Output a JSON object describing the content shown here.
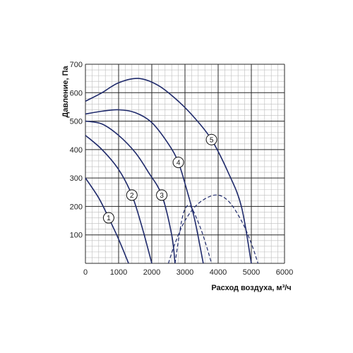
{
  "chart_data": {
    "type": "line",
    "xlabel": "Расход воздуха, м³/ч",
    "ylabel": "Давление, Па",
    "xlim": [
      0,
      6000
    ],
    "ylim": [
      0,
      700
    ],
    "xticks": [
      "0",
      "1000",
      "2000",
      "3000",
      "4000",
      "5000",
      "6000"
    ],
    "yticks": [
      "100",
      "200",
      "300",
      "400",
      "500",
      "600",
      "700"
    ],
    "xtick_values": [
      0,
      1000,
      2000,
      3000,
      4000,
      5000,
      6000
    ],
    "ytick_values": [
      100,
      200,
      300,
      400,
      500,
      600,
      700
    ],
    "grid": true,
    "minor_grid_step": [
      200,
      20
    ],
    "colors": {
      "curve": "#1f2a6b",
      "dashed": "#1f2a6b",
      "major_grid": "#2a2a2a",
      "minor_grid": "#bdbdbd"
    },
    "series": [
      {
        "label": "1",
        "label_at": [
          700,
          160
        ],
        "points": [
          [
            0,
            300
          ],
          [
            400,
            230
          ],
          [
            700,
            160
          ],
          [
            1000,
            85
          ],
          [
            1300,
            0
          ]
        ]
      },
      {
        "label": "2",
        "label_at": [
          1400,
          240
        ],
        "points": [
          [
            0,
            450
          ],
          [
            500,
            400
          ],
          [
            1000,
            330
          ],
          [
            1400,
            240
          ],
          [
            1700,
            130
          ],
          [
            2000,
            0
          ]
        ]
      },
      {
        "label": "3",
        "label_at": [
          2300,
          240
        ],
        "points": [
          [
            0,
            500
          ],
          [
            500,
            490
          ],
          [
            1000,
            450
          ],
          [
            1500,
            390
          ],
          [
            1900,
            320
          ],
          [
            2300,
            240
          ],
          [
            2600,
            100
          ],
          [
            2700,
            0
          ]
        ]
      },
      {
        "label": "4",
        "label_at": [
          2800,
          355
        ],
        "points": [
          [
            0,
            525
          ],
          [
            500,
            535
          ],
          [
            1000,
            540
          ],
          [
            1500,
            530
          ],
          [
            2000,
            495
          ],
          [
            2500,
            420
          ],
          [
            2800,
            355
          ],
          [
            3050,
            260
          ],
          [
            3300,
            150
          ],
          [
            3550,
            0
          ]
        ]
      },
      {
        "label": "5",
        "label_at": [
          3800,
          435
        ],
        "points": [
          [
            0,
            570
          ],
          [
            500,
            600
          ],
          [
            1000,
            635
          ],
          [
            1600,
            650
          ],
          [
            2200,
            625
          ],
          [
            2800,
            570
          ],
          [
            3300,
            510
          ],
          [
            3800,
            435
          ],
          [
            4300,
            320
          ],
          [
            4700,
            200
          ],
          [
            5000,
            0
          ]
        ]
      }
    ],
    "dashed_series": [
      {
        "points": [
          [
            2500,
            0
          ],
          [
            2700,
            70
          ],
          [
            3000,
            150
          ],
          [
            3400,
            210
          ],
          [
            3900,
            240
          ],
          [
            4300,
            220
          ],
          [
            4700,
            150
          ],
          [
            5000,
            70
          ],
          [
            5200,
            0
          ]
        ]
      },
      {
        "points": [
          [
            2700,
            0
          ],
          [
            2900,
            150
          ],
          [
            3050,
            200
          ],
          [
            3200,
            195
          ],
          [
            3450,
            130
          ],
          [
            3650,
            60
          ],
          [
            3800,
            0
          ]
        ]
      }
    ]
  }
}
